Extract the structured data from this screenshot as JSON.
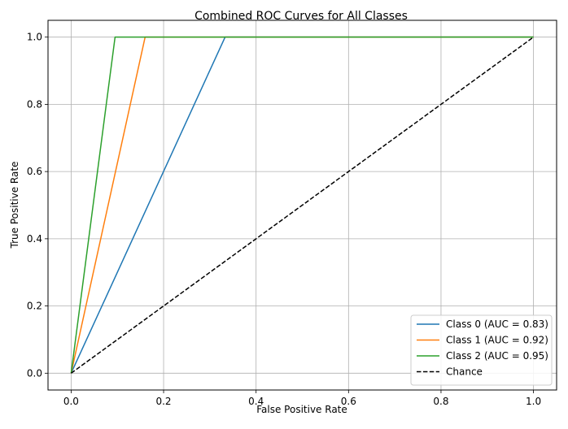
{
  "chart_data": {
    "type": "line",
    "title": "Combined ROC Curves for All Classes",
    "xlabel": "False Positive Rate",
    "ylabel": "True Positive Rate",
    "xlim": [
      -0.05,
      1.05
    ],
    "ylim": [
      -0.05,
      1.05
    ],
    "xticks": [
      0.0,
      0.2,
      0.4,
      0.6,
      0.8,
      1.0
    ],
    "xtick_labels": [
      "0.0",
      "0.2",
      "0.4",
      "0.6",
      "0.8",
      "1.0"
    ],
    "yticks": [
      0.0,
      0.2,
      0.4,
      0.6,
      0.8,
      1.0
    ],
    "ytick_labels": [
      "0.0",
      "0.2",
      "0.4",
      "0.6",
      "0.8",
      "1.0"
    ],
    "grid": true,
    "legend_position": "lower-right",
    "series": [
      {
        "name": "Class 0 (AUC = 0.83)",
        "color": "#1f77b4",
        "dash": "solid",
        "x": [
          0.0,
          0.333,
          1.0
        ],
        "y": [
          0.0,
          1.0,
          1.0
        ]
      },
      {
        "name": "Class 1 (AUC = 0.92)",
        "color": "#ff7f0e",
        "dash": "solid",
        "x": [
          0.0,
          0.16,
          1.0
        ],
        "y": [
          0.0,
          1.0,
          1.0
        ]
      },
      {
        "name": "Class 2 (AUC = 0.95)",
        "color": "#2ca02c",
        "dash": "solid",
        "x": [
          0.0,
          0.095,
          1.0
        ],
        "y": [
          0.0,
          1.0,
          1.0
        ]
      },
      {
        "name": "Chance",
        "color": "#000000",
        "dash": "dashed",
        "x": [
          0.0,
          1.0
        ],
        "y": [
          0.0,
          1.0
        ]
      }
    ]
  }
}
